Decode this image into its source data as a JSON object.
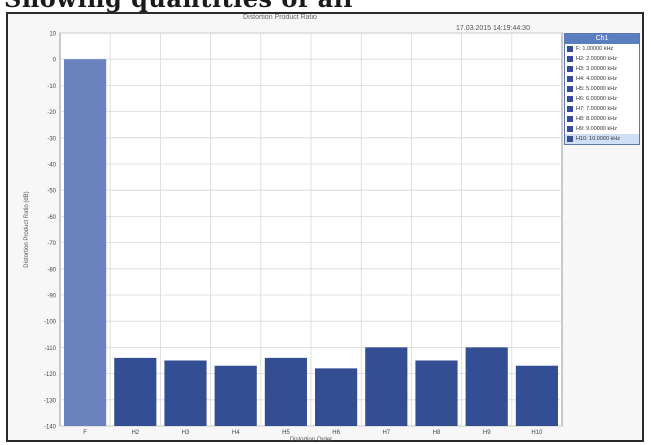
{
  "page": {
    "heading": "Showing quantities of all"
  },
  "chart_data": {
    "type": "bar",
    "title": "Distortion Product Ratio",
    "timestamp": "17.03.2015 14:19:44:30",
    "logo": "AP",
    "xlabel": "Distortion Order",
    "ylabel": "Distortion Product Ratio (dB)",
    "ylim": [
      -140,
      10
    ],
    "yticks": [
      10,
      0,
      -10,
      -20,
      -30,
      -40,
      -50,
      -60,
      -70,
      -80,
      -90,
      -100,
      -110,
      -120,
      -130,
      -140
    ],
    "grid": true,
    "categories": [
      "F",
      "H2",
      "H3",
      "H4",
      "H5",
      "H6",
      "H7",
      "H8",
      "H9",
      "H10"
    ],
    "values": [
      0,
      -114,
      -115,
      -117,
      -114,
      -118,
      -110,
      -115,
      -110,
      -117
    ],
    "colors": {
      "fundamental": "#6a82bd",
      "harmonic": "#334e93",
      "grid": "#d8d8d8"
    },
    "legend": {
      "placement": "right",
      "title": "Ch1",
      "entries": [
        "F: 1.00000 kHz",
        "H2: 2.00000 kHz",
        "H3: 3.00000 kHz",
        "H4: 4.00000 kHz",
        "H5: 5.00000 kHz",
        "H6: 6.00000 kHz",
        "H7: 7.00000 kHz",
        "H8: 8.00000 kHz",
        "H9: 9.00000 kHz",
        "H10: 10.0000 kHz"
      ]
    }
  }
}
